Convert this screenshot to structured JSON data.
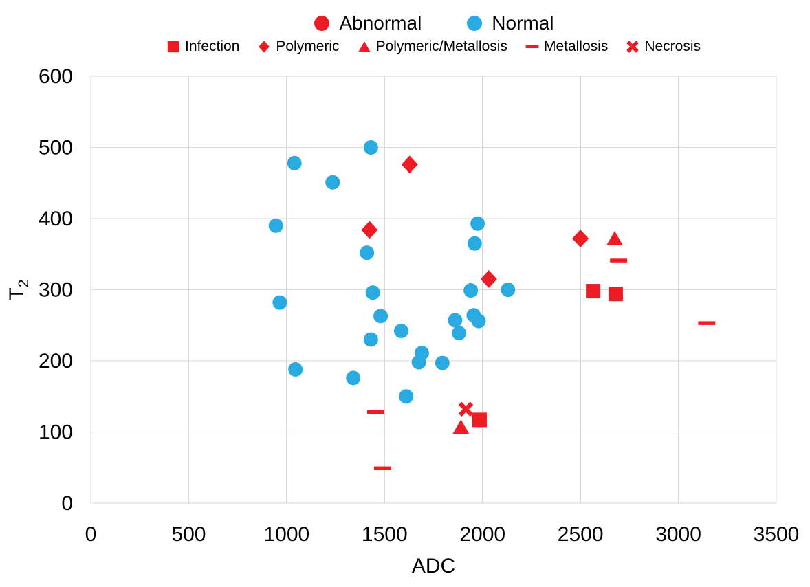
{
  "colors": {
    "abnormal_red": "#EC1C24",
    "normal_blue": "#29ABE2",
    "grid": "#D9D9D9",
    "text": "#000000"
  },
  "legend_primary": {
    "items": [
      {
        "label": "Abnormal",
        "marker": "circle",
        "color_key": "abnormal_red"
      },
      {
        "label": "Normal",
        "marker": "circle",
        "color_key": "normal_blue"
      }
    ]
  },
  "legend_secondary": {
    "items": [
      {
        "label": "Infection",
        "marker": "square",
        "color_key": "abnormal_red"
      },
      {
        "label": "Polymeric",
        "marker": "diamond",
        "color_key": "abnormal_red"
      },
      {
        "label": "Polymeric/Metallosis",
        "marker": "triangle",
        "color_key": "abnormal_red"
      },
      {
        "label": "Metallosis",
        "marker": "dash",
        "color_key": "abnormal_red"
      },
      {
        "label": "Necrosis",
        "marker": "x",
        "color_key": "abnormal_red"
      }
    ]
  },
  "chart_data": {
    "type": "scatter",
    "xlabel": "ADC",
    "ylabel_base": "T",
    "ylabel_sub": "2",
    "xlim": [
      0,
      3500
    ],
    "ylim": [
      0,
      600
    ],
    "xticks": [
      0,
      500,
      1000,
      1500,
      2000,
      2500,
      3000,
      3500
    ],
    "yticks": [
      0,
      100,
      200,
      300,
      400,
      500,
      600
    ],
    "grid": true,
    "legend_position": "top",
    "series": [
      {
        "name": "Normal",
        "marker": "circle",
        "color_key": "normal_blue",
        "points": [
          [
            945,
            390
          ],
          [
            965,
            282
          ],
          [
            1040,
            478
          ],
          [
            1045,
            188
          ],
          [
            1235,
            451
          ],
          [
            1340,
            176
          ],
          [
            1410,
            352
          ],
          [
            1430,
            500
          ],
          [
            1430,
            230
          ],
          [
            1440,
            296
          ],
          [
            1480,
            263
          ],
          [
            1585,
            242
          ],
          [
            1610,
            150
          ],
          [
            1675,
            198
          ],
          [
            1690,
            211
          ],
          [
            1795,
            197
          ],
          [
            1860,
            257
          ],
          [
            1880,
            239
          ],
          [
            1940,
            299
          ],
          [
            1955,
            264
          ],
          [
            1960,
            365
          ],
          [
            1975,
            393
          ],
          [
            1980,
            256
          ],
          [
            2130,
            300
          ]
        ]
      },
      {
        "name": "Infection",
        "marker": "square",
        "color_key": "abnormal_red",
        "points": [
          [
            1985,
            117
          ],
          [
            2565,
            298
          ],
          [
            2680,
            294
          ]
        ]
      },
      {
        "name": "Polymeric",
        "marker": "diamond",
        "color_key": "abnormal_red",
        "points": [
          [
            1423,
            384
          ],
          [
            1628,
            476
          ],
          [
            2032,
            315
          ],
          [
            2500,
            372
          ]
        ]
      },
      {
        "name": "Polymeric/Metallosis",
        "marker": "triangle",
        "color_key": "abnormal_red",
        "points": [
          [
            1890,
            107
          ],
          [
            2675,
            372
          ]
        ]
      },
      {
        "name": "Metallosis",
        "marker": "dash",
        "color_key": "abnormal_red",
        "points": [
          [
            1455,
            128
          ],
          [
            1490,
            49
          ],
          [
            2695,
            341
          ],
          [
            3145,
            253
          ]
        ]
      },
      {
        "name": "Necrosis",
        "marker": "x",
        "color_key": "abnormal_red",
        "points": [
          [
            1915,
            132
          ]
        ]
      }
    ]
  }
}
